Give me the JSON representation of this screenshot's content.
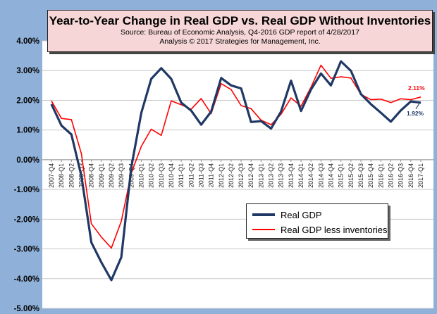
{
  "title": {
    "main": "Year-to-Year Change in Real GDP vs. Real GDP Without Inventories",
    "source": "Source: Bureau of Economic Analysis, Q4-2016 GDP report of 4/28/2017",
    "credit": "Analysis © 2017 Strategies for Management, Inc."
  },
  "colors": {
    "background": "#8fb0d8",
    "plot_background": "#ffffff",
    "gdp": "#1f3864",
    "gdp_less_inv": "#ff0000",
    "grid": "#c8c8c8"
  },
  "chart_data": {
    "type": "line",
    "ylim": [
      -5,
      4
    ],
    "yticks": [
      "4.00%",
      "3.00%",
      "2.00%",
      "1.00%",
      "0.00%",
      "-1.00%",
      "-2.00%",
      "-3.00%",
      "-4.00%",
      "-5.00%"
    ],
    "grid": true,
    "legend_position": "bottom-center",
    "categories": [
      "2007-Q4",
      "2008-Q1",
      "2008-Q2",
      "2008-Q3",
      "2008-Q4",
      "2009-Q1",
      "2009-Q2",
      "2009-Q3",
      "2009-Q4",
      "2010-Q1",
      "2010-Q2",
      "2010-Q3",
      "2010-Q4",
      "2011-Q1",
      "2011-Q2",
      "2011-Q3",
      "2011-Q4",
      "2012-Q1",
      "2012-Q2",
      "2012-Q3",
      "2012-Q4",
      "2013-Q1",
      "2013-Q2",
      "2013-Q3",
      "2013-Q4",
      "2014-Q1",
      "2014-Q2",
      "2014-Q3",
      "2014-Q4",
      "2015-Q1",
      "2015-Q2",
      "2015-Q3",
      "2015-Q4",
      "2016-Q1",
      "2016-Q2",
      "2016-Q3",
      "2016-Q4",
      "2017-Q1"
    ],
    "series": [
      {
        "name": "Real GDP",
        "values": [
          1.87,
          1.15,
          0.85,
          -0.55,
          -2.78,
          -3.45,
          -4.05,
          -3.28,
          -0.25,
          1.58,
          2.72,
          3.08,
          2.72,
          1.92,
          1.65,
          1.18,
          1.62,
          2.75,
          2.5,
          2.4,
          1.27,
          1.3,
          1.05,
          1.62,
          2.66,
          1.64,
          2.36,
          2.9,
          2.5,
          3.31,
          2.99,
          2.21,
          1.87,
          1.58,
          1.28,
          1.66,
          1.96,
          1.92
        ],
        "end_label": "1.92%"
      },
      {
        "name": "Real GDP less inventories",
        "values": [
          1.98,
          1.39,
          1.35,
          0.2,
          -2.15,
          -2.6,
          -2.97,
          -2.07,
          -0.45,
          0.45,
          1.03,
          0.82,
          1.98,
          1.85,
          1.7,
          2.06,
          1.55,
          2.56,
          2.36,
          1.82,
          1.72,
          1.33,
          1.18,
          1.53,
          2.08,
          1.8,
          2.44,
          3.18,
          2.74,
          2.79,
          2.75,
          2.2,
          2.02,
          2.04,
          1.92,
          2.05,
          2.02,
          2.11
        ],
        "end_label": "2.11%"
      }
    ]
  }
}
